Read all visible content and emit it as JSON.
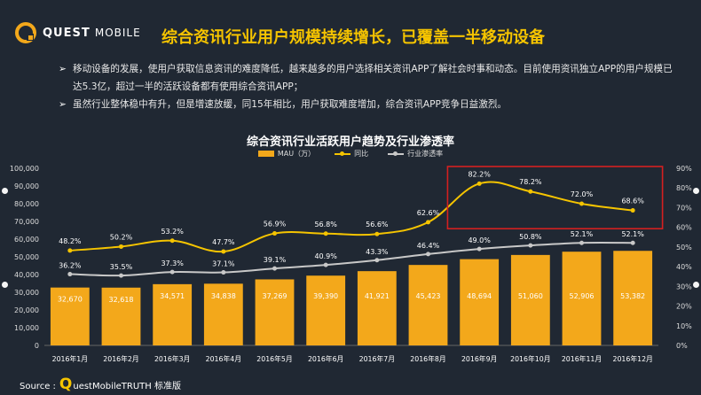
{
  "header": {
    "brand_bold": "QUEST",
    "brand_light": "MOBILE",
    "title": "综合资讯行业用户规模持续增长，已覆盖一半移动设备"
  },
  "bullets": [
    "移动设备的发展，使用户获取信息资讯的难度降低，越来越多的用户选择相关资讯APP了解社会时事和动态。目前使用资讯独立APP的用户规模已达5.3亿，超过一半的活跃设备都有使用综合资讯APP；",
    "虽然行业整体稳中有升，但是增速放缓，同15年相比，用户获取难度增加，综合资讯APP竞争日益激烈。"
  ],
  "bullet_marker": "➢",
  "source": {
    "prefix": "Source :",
    "q": "Q",
    "rest": "uestMobileTRUTH 标准版"
  },
  "colors": {
    "bar": "#f3a81b",
    "yoy_line": "#f5c400",
    "penetration_line": "#c8c8c8",
    "highlight": "#d42020",
    "title": "#f5c400"
  },
  "chart_data": {
    "type": "bar",
    "title": "综合资讯行业活跃用户趋势及行业渗透率",
    "categories": [
      "2016年1月",
      "2016年2月",
      "2016年3月",
      "2016年4月",
      "2016年5月",
      "2016年6月",
      "2016年7月",
      "2016年8月",
      "2016年9月",
      "2016年10月",
      "2016年11月",
      "2016年12月"
    ],
    "series": [
      {
        "name": "MAU（万）",
        "type": "bar",
        "axis": "left",
        "values": [
          32670,
          32618,
          34571,
          34838,
          37269,
          39390,
          41921,
          45423,
          48694,
          51060,
          52906,
          53382
        ],
        "labels": [
          "32,670",
          "32,618",
          "34,571",
          "34,838",
          "37,269",
          "39,390",
          "41,921",
          "45,423",
          "48,694",
          "51,060",
          "52,906",
          "53,382"
        ]
      },
      {
        "name": "同比",
        "type": "line",
        "axis": "right",
        "values": [
          48.2,
          50.2,
          53.2,
          47.7,
          56.9,
          56.8,
          56.6,
          62.6,
          82.2,
          78.2,
          72.0,
          68.6
        ],
        "labels": [
          "48.2%",
          "50.2%",
          "53.2%",
          "47.7%",
          "56.9%",
          "56.8%",
          "56.6%",
          "62.6%",
          "82.2%",
          "78.2%",
          "72.0%",
          "68.6%"
        ]
      },
      {
        "name": "行业渗透率",
        "type": "line",
        "axis": "right",
        "values": [
          36.2,
          35.5,
          37.3,
          37.1,
          39.1,
          40.9,
          43.3,
          46.4,
          49.0,
          50.8,
          52.1,
          52.1
        ],
        "labels": [
          "36.2%",
          "35.5%",
          "37.3%",
          "37.1%",
          "39.1%",
          "40.9%",
          "43.3%",
          "46.4%",
          "49.0%",
          "50.8%",
          "52.1%",
          "52.1%"
        ]
      }
    ],
    "ylim": [
      0,
      100000
    ],
    "yticks": [
      "100,000",
      "90,000",
      "80,000",
      "70,000",
      "60,000",
      "50,000",
      "40,000",
      "30,000",
      "20,000",
      "10,000",
      "0"
    ],
    "y2lim": [
      0,
      90
    ],
    "y2ticks": [
      "90%",
      "80%",
      "70%",
      "60%",
      "50%",
      "40%",
      "30%",
      "20%",
      "10%",
      "0%"
    ],
    "highlight_range": [
      "2016年9月",
      "2016年12月"
    ],
    "legend": [
      "MAU（万）",
      "同比",
      "行业渗透率"
    ]
  }
}
